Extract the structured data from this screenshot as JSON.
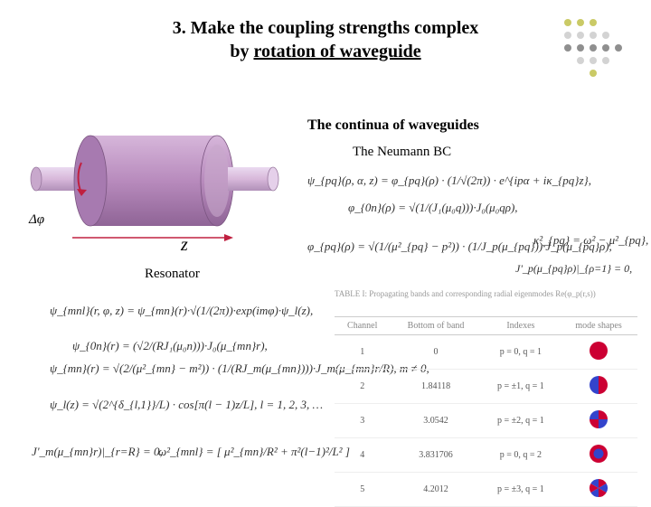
{
  "title_line1": "3. Make the coupling strengths complex",
  "title_line2_prefix": "by ",
  "title_line2_underlined": "rotation of waveguide",
  "subheading1": "The continua of waveguides",
  "subheading2": "The Neumann BC",
  "labels": {
    "z": "z",
    "dphi": "Δφ",
    "resonator": "Resonator"
  },
  "equations": {
    "psi_pq": "ψ_{pq}(ρ, α, z) = φ_{pq}(ρ) · (1/√(2π)) · e^{ipα + iκ_{pq}z},",
    "psi_0n": "φ_{0n}(ρ) = √(1/(J₁(μ₀q)))·J₀(μ₀qρ),",
    "phi_pq": "φ_{pq}(ρ) = √(1/(μ²_{pq} − p²)) · (1/J_p(μ_{pq}))·J_p(μ_{pq}ρ),",
    "kpq": "κ²_{pq} = ω² − μ²_{pq},",
    "jprime": "J'_p(μ_{pq}ρ)|_{ρ=1} = 0,",
    "left1": "ψ_{mnl}(r, φ, z) = ψ_{mn}(r)·√(1/(2π))·exp(imφ)·ψ_l(z),",
    "left2": "ψ_{0n}(r) = (√2/(RJ₁(μ₀n)))·J₀(μ_{mn}r),",
    "left3": "ψ_{mn}(r) = √(2/(μ²_{mn} − m²)) · (1/(RJ_m(μ_{mn})))·J_m(μ_{mn}r/R), m ≠ 0,",
    "left4": "ψ_l(z) = √(2^{δ_{l,1}}/L) · cos[π(l − 1)z/L], l = 1, 2, 3, …",
    "left5": "J'_m(μ_{mn}r)|_{r=R} = 0,",
    "left6": "ω²_{mnl} = [ μ²_{mn}/R² + π²(l−1)²/L² ]"
  },
  "table": {
    "caption": "TABLE I: Propagating bands and corresponding radial eigenmodes Re(φ_p(r,s))",
    "headers": [
      "Channel",
      "Bottom of band",
      "Indexes",
      "mode shapes"
    ],
    "rows": [
      {
        "channel": "1",
        "bottom": "0",
        "indexes": "p = 0, q = 1"
      },
      {
        "channel": "2",
        "bottom": "1.84118",
        "indexes": "p = ±1, q = 1"
      },
      {
        "channel": "3",
        "bottom": "3.0542",
        "indexes": "p = ±2, q = 1"
      },
      {
        "channel": "4",
        "bottom": "3.831706",
        "indexes": "p = 0, q = 2"
      },
      {
        "channel": "5",
        "bottom": "4.2012",
        "indexes": "p = ±3, q = 1"
      }
    ]
  },
  "styling": {
    "dot_colors": [
      "#a7a600",
      "#c0c0c0",
      "#606060"
    ],
    "cylinder_body": "#b88bbd",
    "cylinder_edge": "#8a5d94",
    "waveguide_body": "#d8b8da",
    "arrow_color": "#c02040",
    "mode_shapes": [
      {
        "type": "solid",
        "fill": "#cc0033"
      },
      {
        "type": "bipole",
        "c1": "#cc0033",
        "c2": "#3344cc"
      },
      {
        "type": "quad",
        "c1": "#cc0033",
        "c2": "#3344cc"
      },
      {
        "type": "ring",
        "outer": "#cc0033",
        "inner": "#3344cc"
      },
      {
        "type": "sextupole",
        "c1": "#cc0033",
        "c2": "#3344cc"
      }
    ]
  }
}
